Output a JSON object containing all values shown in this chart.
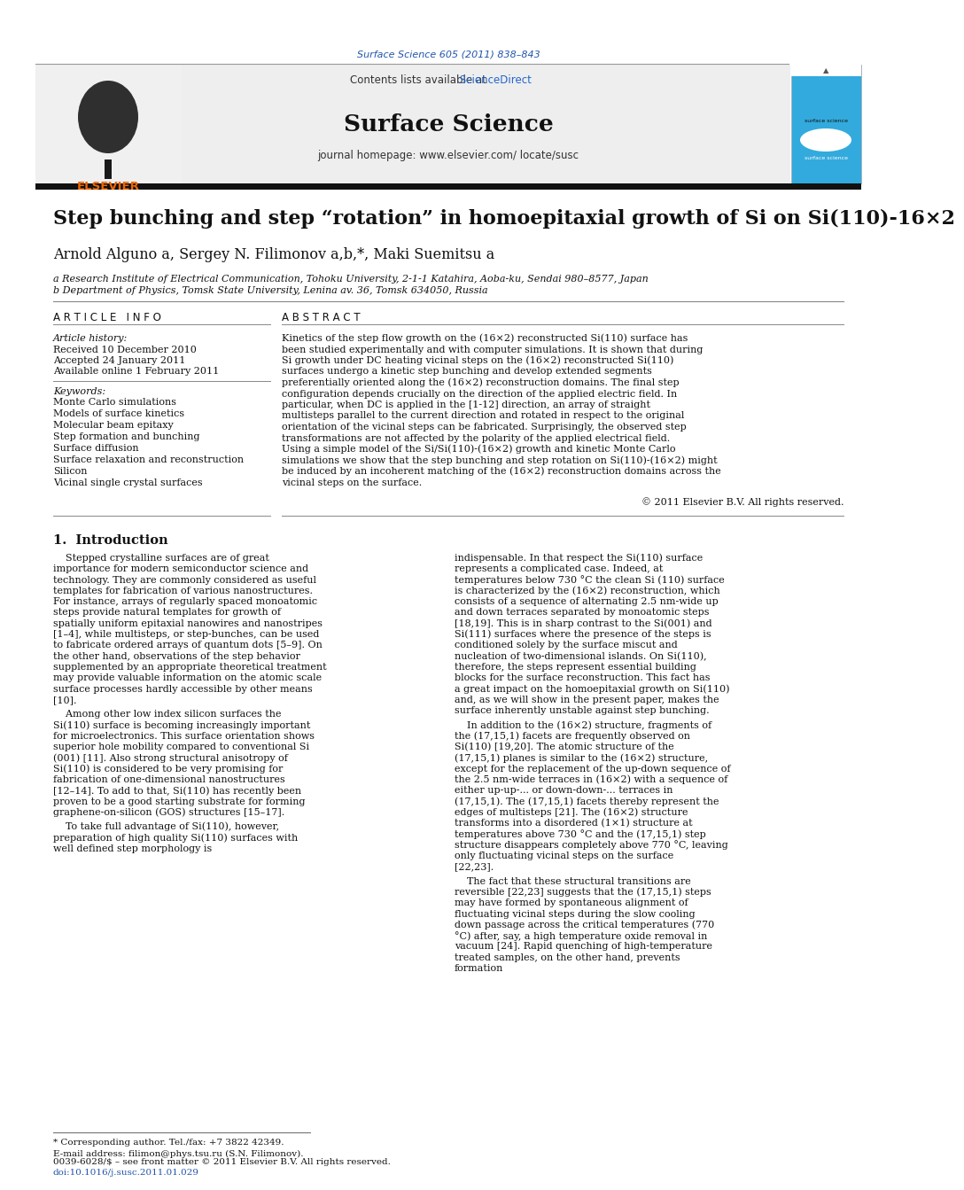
{
  "journal_ref": "Surface Science 605 (2011) 838–843",
  "journal_name": "Surface Science",
  "contents_line": "Contents lists available at ScienceDirect",
  "journal_homepage": "journal homepage: www.elsevier.com/ locate/susc",
  "title": "Step bunching and step “rotation” in homoepitaxial growth of Si on Si(110)-16×2",
  "authors": "Arnold Alguno a, Sergey N. Filimonov a,b,*, Maki Suemitsu a",
  "affil_a": "a Research Institute of Electrical Communication, Tohoku University, 2-1-1 Katahira, Aoba-ku, Sendai 980–8577, Japan",
  "affil_b": "b Department of Physics, Tomsk State University, Lenina av. 36, Tomsk 634050, Russia",
  "article_info_header": "A R T I C L E   I N F O",
  "abstract_header": "A B S T R A C T",
  "article_history_label": "Article history:",
  "received": "Received 10 December 2010",
  "accepted": "Accepted 24 January 2011",
  "available": "Available online 1 February 2011",
  "keywords_label": "Keywords:",
  "keywords": [
    "Monte Carlo simulations",
    "Models of surface kinetics",
    "Molecular beam epitaxy",
    "Step formation and bunching",
    "Surface diffusion",
    "Surface relaxation and reconstruction",
    "Silicon",
    "Vicinal single crystal surfaces"
  ],
  "abstract_text": "Kinetics of the step flow growth on the (16×2) reconstructed Si(110) surface has been studied experimentally and with computer simulations. It is shown that during Si growth under DC heating vicinal steps on the (16×2) reconstructed Si(110) surfaces undergo a kinetic step bunching and develop extended segments preferentially oriented along the (16×2) reconstruction domains. The final step configuration depends crucially on the direction of the applied electric field. In particular, when DC is applied in the [1-12] direction, an array of straight multisteps parallel to the current direction and rotated in respect to the original orientation of the vicinal steps can be fabricated. Surprisingly, the observed step transformations are not affected by the polarity of the applied electrical field. Using a simple model of the Si/Si(110)-(16×2) growth and kinetic Monte Carlo simulations we show that the step bunching and step rotation on Si(110)-(16×2) might be induced by an incoherent matching of the (16×2) reconstruction domains across the vicinal steps on the surface.",
  "copyright": "© 2011 Elsevier B.V. All rights reserved.",
  "intro_header": "1.  Introduction",
  "intro_col1_p1": "Stepped crystalline surfaces are of great importance for modern semiconductor science and technology. They are commonly considered as useful templates for fabrication of various nanostructures. For instance, arrays of regularly spaced monoatomic steps provide natural templates for growth of spatially uniform epitaxial nanowires and nanostripes [1–4], while multisteps, or step-bunches, can be used to fabricate ordered arrays of quantum dots [5–9]. On the other hand, observations of the step behavior supplemented by an appropriate theoretical treatment may provide valuable information on the atomic scale surface processes hardly accessible by other means [10].",
  "intro_col1_p2": "Among other low index silicon surfaces the Si(110) surface is becoming increasingly important for microelectronics. This surface orientation shows superior hole mobility compared to conventional Si (001) [11]. Also strong structural anisotropy of Si(110) is considered to be very promising for fabrication of one-dimensional nanostructures [12–14]. To add to that, Si(110) has recently been proven to be a good starting substrate for forming graphene-on-silicon (GOS) structures [15–17].",
  "intro_col1_p3": "To take full advantage of Si(110), however, preparation of high quality Si(110) surfaces with well defined step morphology is",
  "intro_col2_p1": "indispensable. In that respect the Si(110) surface represents a complicated case. Indeed, at temperatures below 730 °C the clean Si (110) surface is characterized by the (16×2) reconstruction, which consists of a sequence of alternating 2.5 nm-wide up and down terraces separated by monoatomic steps [18,19]. This is in sharp contrast to the Si(001) and Si(111) surfaces where the presence of the steps is conditioned solely by the surface miscut and nucleation of two-dimensional islands. On Si(110), therefore, the steps represent essential building blocks for the surface reconstruction. This fact has a great impact on the homoepitaxial growth on Si(110) and, as we will show in the present paper, makes the surface inherently unstable against step bunching.",
  "intro_col2_p2": "In addition to the (16×2) structure, fragments of the (17,15,1) facets are frequently observed on Si(110) [19,20]. The atomic structure of the (17,15,1) planes is similar to the (16×2) structure, except for the replacement of the up-down sequence of the 2.5 nm-wide terraces in (16×2) with a sequence of either up-up-... or down-down-... terraces in (17,15,1). The (17,15,1) facets thereby represent the edges of multisteps [21]. The (16×2) structure transforms into a disordered (1×1) structure at temperatures above 730 °C and the (17,15,1) step structure disappears completely above 770 °C, leaving only fluctuating vicinal steps on the surface [22,23].",
  "intro_col2_p3": "The fact that these structural transitions are reversible [22,23] suggests that the (17,15,1) steps may have formed by spontaneous alignment of fluctuating vicinal steps during the slow cooling down passage across the critical temperatures (770 °C) after, say, a high temperature oxide removal in vacuum [24]. Rapid quenching of high-temperature treated samples, on the other hand, prevents formation",
  "footnote_corresponding": "* Corresponding author. Tel./fax: +7 3822 42349.",
  "footnote_email": "E-mail address: filimon@phys.tsu.ru (S.N. Filimonov).",
  "footnote_issn": "0039-6028/$ – see front matter © 2011 Elsevier B.V. All rights reserved.",
  "footnote_doi": "doi:10.1016/j.susc.2011.01.029",
  "bg_color": "#ffffff",
  "blue_color": "#2255aa",
  "sciencedirect_color": "#2266cc",
  "elsevier_orange": "#ee6600",
  "black_bar": "#111111"
}
